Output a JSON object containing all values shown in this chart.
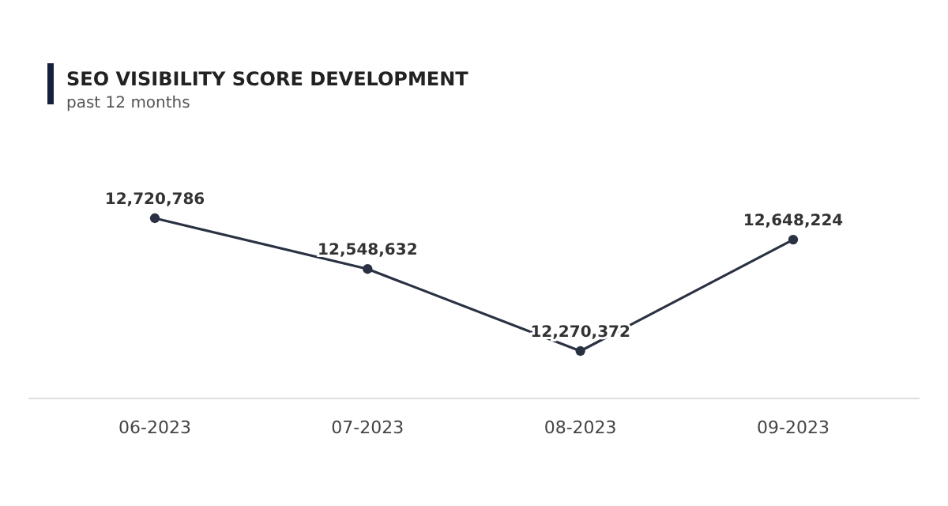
{
  "chart_data": {
    "type": "line",
    "title": "SEO VISIBILITY SCORE DEVELOPMENT",
    "subtitle": "past 12 months",
    "categories": [
      "06-2023",
      "07-2023",
      "08-2023",
      "09-2023"
    ],
    "values": [
      12720786,
      12548632,
      12270372,
      12648224
    ],
    "value_labels": [
      "12,720,786",
      "12,548,632",
      "12,270,372",
      "12,648,224"
    ],
    "color": "#2a3142",
    "marker": "circle"
  }
}
